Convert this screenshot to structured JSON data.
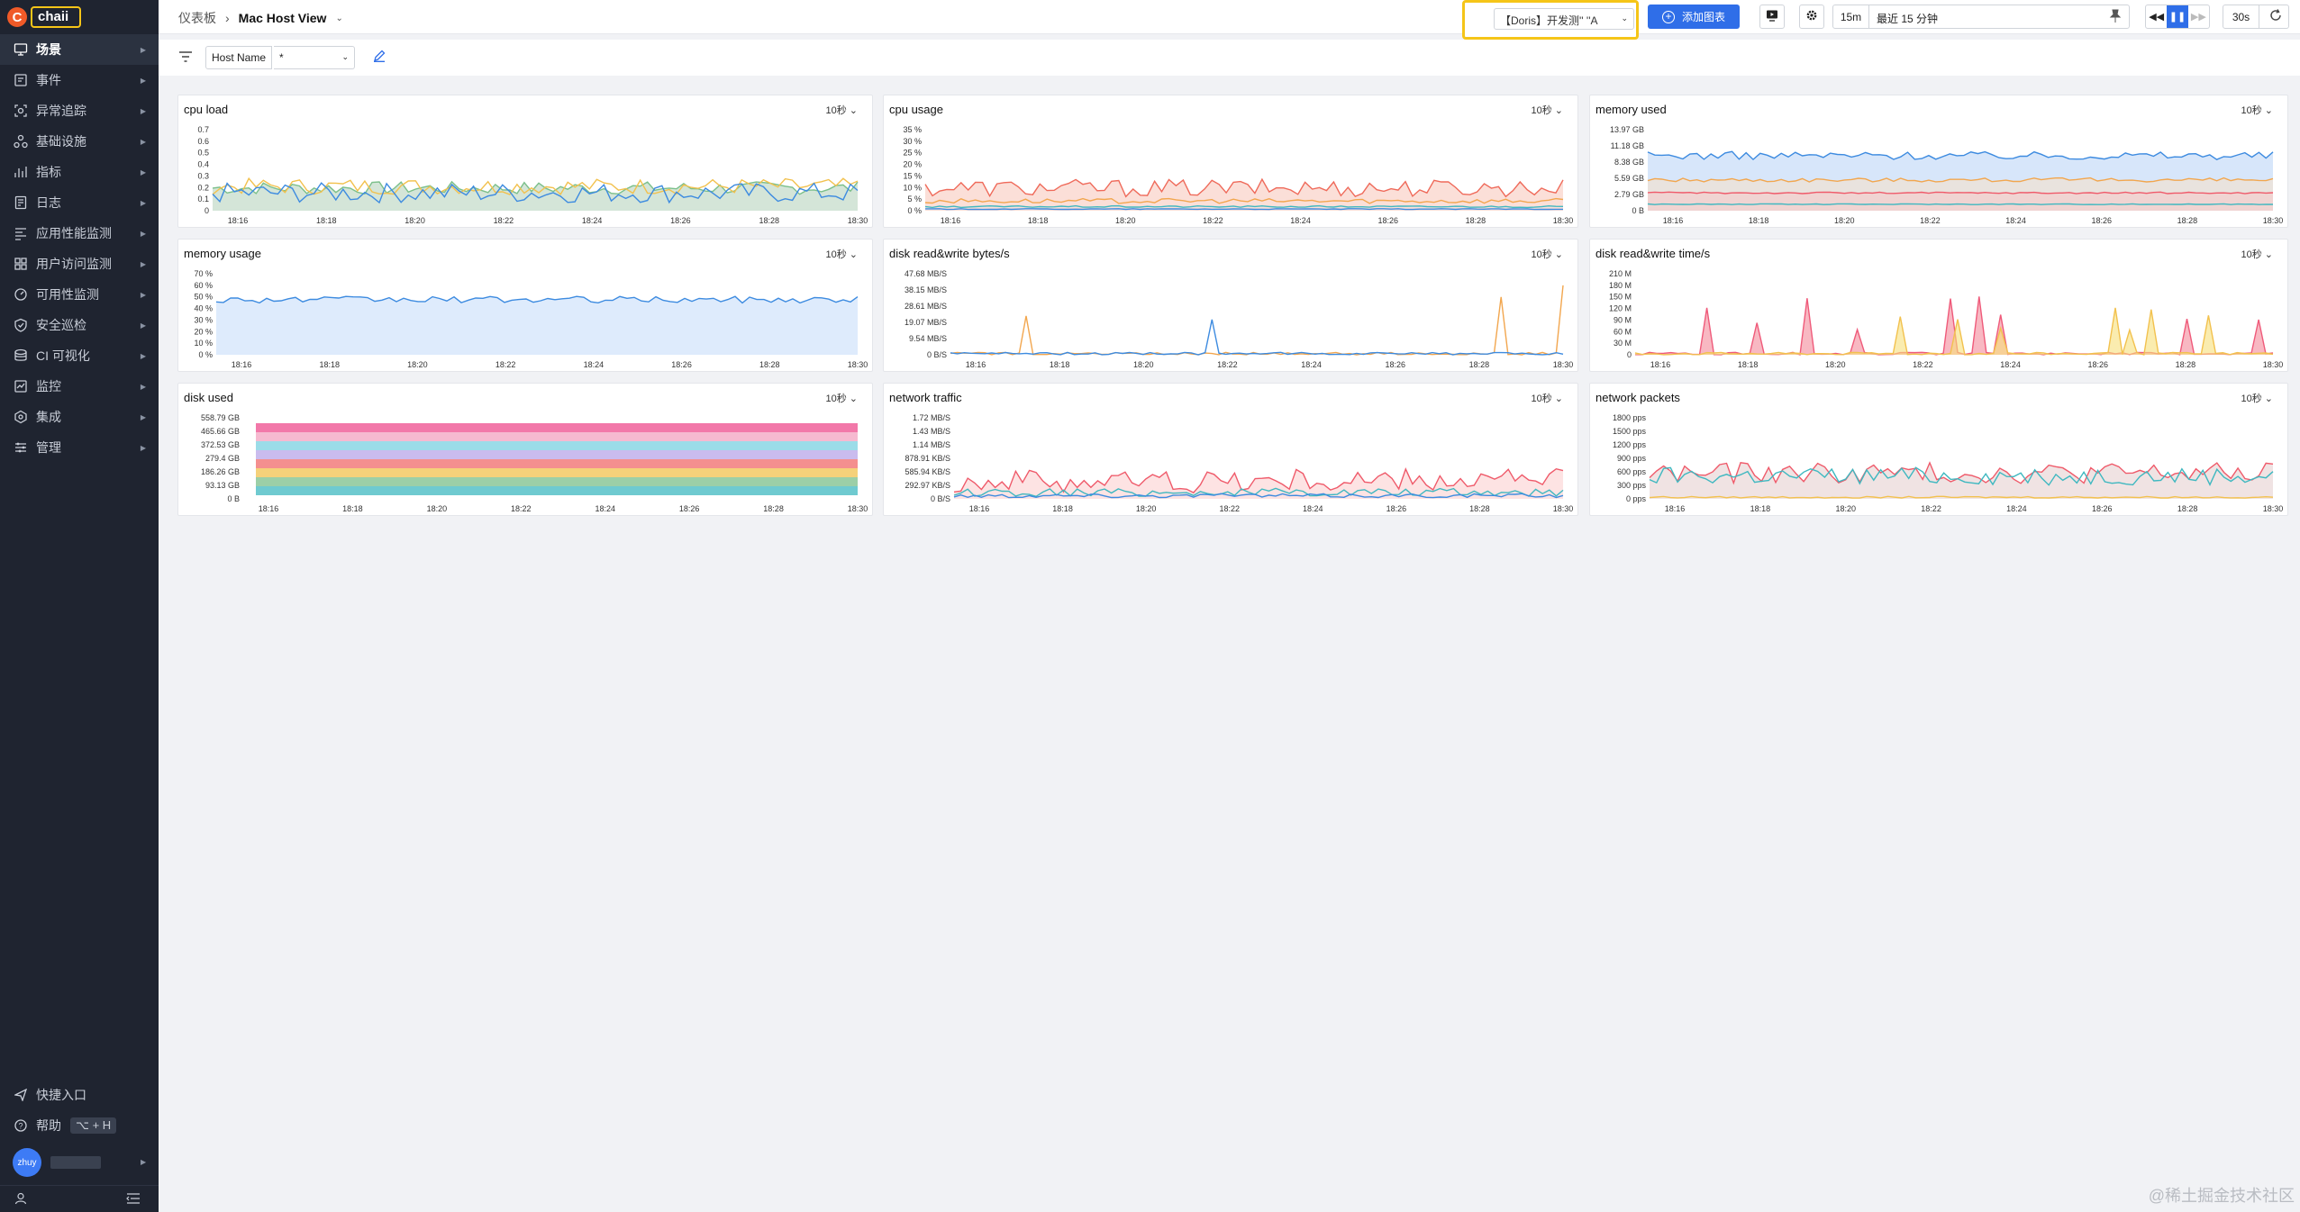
{
  "sidebar": {
    "logo_text": "chaii",
    "items": [
      {
        "label": "场景",
        "icon": "monitor-icon",
        "active": true
      },
      {
        "label": "事件",
        "icon": "event-icon"
      },
      {
        "label": "异常追踪",
        "icon": "scan-icon"
      },
      {
        "label": "基础设施",
        "icon": "infrastructure-icon"
      },
      {
        "label": "指标",
        "icon": "metrics-icon"
      },
      {
        "label": "日志",
        "icon": "log-icon"
      },
      {
        "label": "应用性能监测",
        "icon": "apm-icon"
      },
      {
        "label": "用户访问监测",
        "icon": "rum-icon"
      },
      {
        "label": "可用性监测",
        "icon": "dial-icon"
      },
      {
        "label": "安全巡检",
        "icon": "shield-icon"
      },
      {
        "label": "CI 可视化",
        "icon": "ci-icon"
      },
      {
        "label": "监控",
        "icon": "monitor-alert-icon"
      },
      {
        "label": "集成",
        "icon": "integration-icon"
      },
      {
        "label": "管理",
        "icon": "settings-icon"
      }
    ],
    "bottom": {
      "shortcut_label": "快捷入口",
      "help_label": "帮助",
      "help_kbd": "⌥ + H",
      "avatar_text": "zhuy"
    }
  },
  "header": {
    "breadcrumb_root": "仪表板",
    "breadcrumb_current": "Mac Host View",
    "datasource": "【Doris】开发测'' ''A",
    "add_chart": "添加图表",
    "quick_range": "15m",
    "time_range": "最近 15 分钟",
    "refresh_interval": "30s"
  },
  "filter": {
    "var_label": "Host Name",
    "var_value": "*"
  },
  "panels": [
    {
      "id": "cpu-load",
      "title": "cpu load",
      "interval": "10秒",
      "yticks": [
        "0.7",
        "0.6",
        "0.5",
        "0.4",
        "0.3",
        "0.2",
        "0.1",
        "0"
      ],
      "xticks": [
        "18:16",
        "18:18",
        "18:20",
        "18:22",
        "18:24",
        "18:26",
        "18:28",
        "18:30"
      ]
    },
    {
      "id": "cpu-usage",
      "title": "cpu usage",
      "interval": "10秒",
      "yticks": [
        "35 %",
        "30 %",
        "25 %",
        "20 %",
        "15 %",
        "10 %",
        "5 %",
        "0 %"
      ],
      "xticks": [
        "18:16",
        "18:18",
        "18:20",
        "18:22",
        "18:24",
        "18:26",
        "18:28",
        "18:30"
      ]
    },
    {
      "id": "memory-used",
      "title": "memory used",
      "interval": "10秒",
      "yticks": [
        "13.97 GB",
        "11.18 GB",
        "8.38 GB",
        "5.59 GB",
        "2.79 GB",
        "0 B"
      ],
      "xticks": [
        "18:16",
        "18:18",
        "18:20",
        "18:22",
        "18:24",
        "18:26",
        "18:28",
        "18:30"
      ]
    },
    {
      "id": "memory-usage",
      "title": "memory usage",
      "interval": "10秒",
      "yticks": [
        "70 %",
        "60 %",
        "50 %",
        "40 %",
        "30 %",
        "20 %",
        "10 %",
        "0 %"
      ],
      "xticks": [
        "18:16",
        "18:18",
        "18:20",
        "18:22",
        "18:24",
        "18:26",
        "18:28",
        "18:30"
      ]
    },
    {
      "id": "disk-rw-bytes",
      "title": "disk read&write bytes/s",
      "interval": "10秒",
      "yticks": [
        "47.68 MB/S",
        "38.15 MB/S",
        "28.61 MB/S",
        "19.07 MB/S",
        "9.54 MB/S",
        "0 B/S"
      ],
      "xticks": [
        "18:16",
        "18:18",
        "18:20",
        "18:22",
        "18:24",
        "18:26",
        "18:28",
        "18:30"
      ]
    },
    {
      "id": "disk-rw-time",
      "title": "disk read&write time/s",
      "interval": "10秒",
      "yticks": [
        "210 M",
        "180 M",
        "150 M",
        "120 M",
        "90 M",
        "60 M",
        "30 M",
        "0"
      ],
      "xticks": [
        "18:16",
        "18:18",
        "18:20",
        "18:22",
        "18:24",
        "18:26",
        "18:28",
        "18:30"
      ]
    },
    {
      "id": "disk-used",
      "title": "disk used",
      "interval": "10秒",
      "yticks": [
        "558.79 GB",
        "465.66 GB",
        "372.53 GB",
        "279.4 GB",
        "186.26 GB",
        "93.13 GB",
        "0 B"
      ],
      "xticks": [
        "18:16",
        "18:18",
        "18:20",
        "18:22",
        "18:24",
        "18:26",
        "18:28",
        "18:30"
      ]
    },
    {
      "id": "network-traffic",
      "title": "network traffic",
      "interval": "10秒",
      "yticks": [
        "1.72 MB/S",
        "1.43 MB/S",
        "1.14 MB/S",
        "878.91 KB/S",
        "585.94 KB/S",
        "292.97 KB/S",
        "0 B/S"
      ],
      "xticks": [
        "18:16",
        "18:18",
        "18:20",
        "18:22",
        "18:24",
        "18:26",
        "18:28",
        "18:30"
      ]
    },
    {
      "id": "network-packets",
      "title": "network packets",
      "interval": "10秒",
      "yticks": [
        "1800 pps",
        "1500 pps",
        "1200 pps",
        "900 pps",
        "600 pps",
        "300 pps",
        "0 pps"
      ],
      "xticks": [
        "18:16",
        "18:18",
        "18:20",
        "18:22",
        "18:24",
        "18:26",
        "18:28",
        "18:30"
      ]
    }
  ],
  "watermark": "@稀土掘金技术社区"
}
